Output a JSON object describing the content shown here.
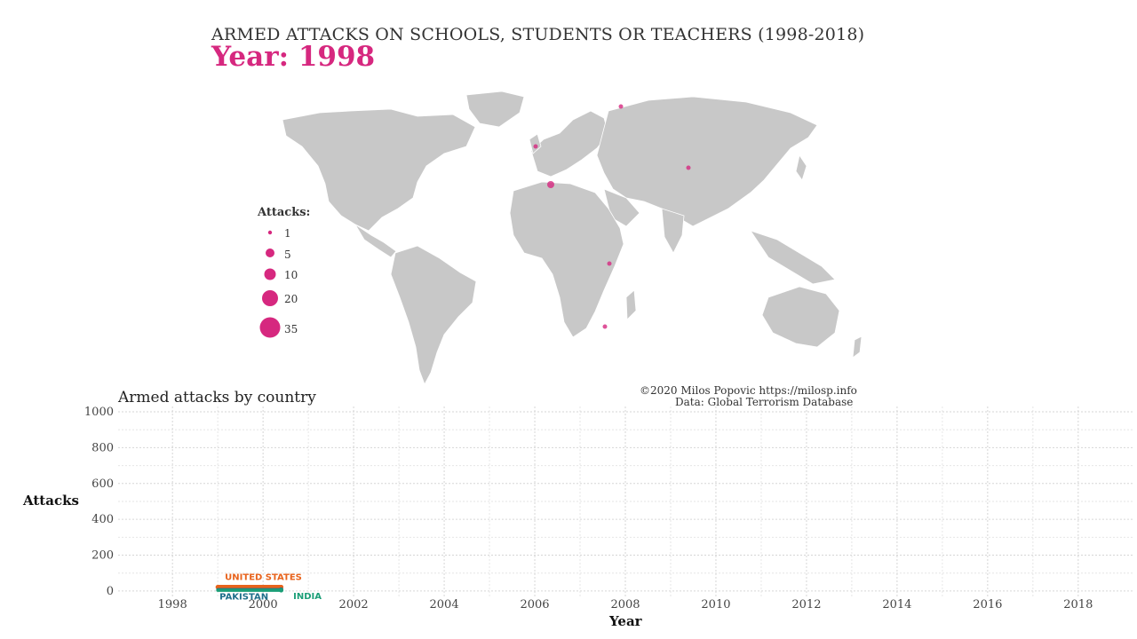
{
  "header": {
    "title": "ARMED ATTACKS ON SCHOOLS, STUDENTS OR TEACHERS (1998-2018)",
    "year_label": "Year: 1998"
  },
  "map": {
    "land_color": "#c8c8c8",
    "border_color": "#ffffff",
    "point_color": "#d6287f",
    "legend": {
      "title": "Attacks:",
      "items": [
        "1",
        "5",
        "10",
        "20",
        "35"
      ]
    }
  },
  "credits": {
    "line1": "©2020 Milos Popovic https://milosp.info",
    "line2": "Data: Global Terrorism Database"
  },
  "chart_data": {
    "type": "line",
    "title": "Armed attacks by country",
    "xlabel": "Year",
    "ylabel": "Attacks",
    "xlim": [
      1996.8,
      2019.2
    ],
    "ylim": [
      -35,
      1030
    ],
    "x_ticks": [
      1998,
      2000,
      2002,
      2004,
      2006,
      2008,
      2010,
      2012,
      2014,
      2016,
      2018
    ],
    "y_ticks": [
      0,
      200,
      400,
      600,
      800,
      1000
    ],
    "grid": true,
    "series": [
      {
        "name": "UNITED STATES",
        "color": "#e8631c",
        "x": [
          1999,
          2000.4
        ],
        "y": [
          22,
          22
        ]
      },
      {
        "name": "PAKISTAN",
        "color": "#1f6f8b",
        "x": [
          1999,
          2000.4
        ],
        "y": [
          8,
          8
        ]
      },
      {
        "name": "INDIA",
        "color": "#1b9e77",
        "x": [
          1999,
          2000.4
        ],
        "y": [
          4,
          4
        ]
      }
    ]
  }
}
